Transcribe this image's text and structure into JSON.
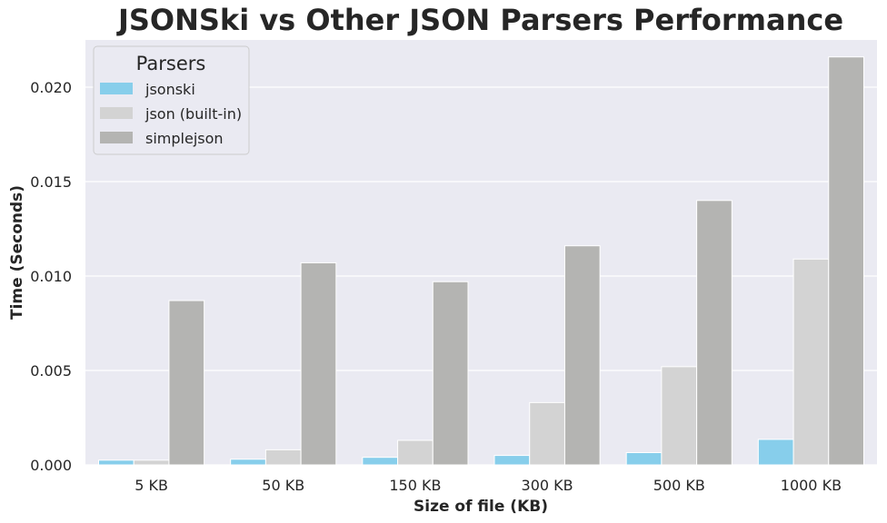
{
  "chart_data": {
    "type": "bar",
    "title": "JSONSki vs Other JSON Parsers Performance",
    "xlabel": "Size of file (KB)",
    "ylabel": "Time (Seconds)",
    "categories": [
      "5 KB",
      "50 KB",
      "150 KB",
      "300 KB",
      "500 KB",
      "1000 KB"
    ],
    "series": [
      {
        "name": "jsonski",
        "color": "#87ceeb",
        "values": [
          0.00025,
          0.0003,
          0.0004,
          0.0005,
          0.00065,
          0.00135
        ]
      },
      {
        "name": "json (built-in)",
        "color": "#d3d3d3",
        "values": [
          0.00025,
          0.0008,
          0.0013,
          0.0033,
          0.0052,
          0.0109
        ]
      },
      {
        "name": "simplejson",
        "color": "#b4b4b2",
        "values": [
          0.0087,
          0.0107,
          0.0097,
          0.0116,
          0.014,
          0.0216
        ]
      }
    ],
    "ylim": [
      0,
      0.0225
    ],
    "yticks": [
      "0.000",
      "0.005",
      "0.010",
      "0.015",
      "0.020"
    ],
    "ytick_values": [
      0,
      0.005,
      0.01,
      0.015,
      0.02
    ],
    "legend": {
      "title": "Parsers",
      "position": "upper-left"
    },
    "grid": true,
    "background_color": "#eaeaf2"
  }
}
